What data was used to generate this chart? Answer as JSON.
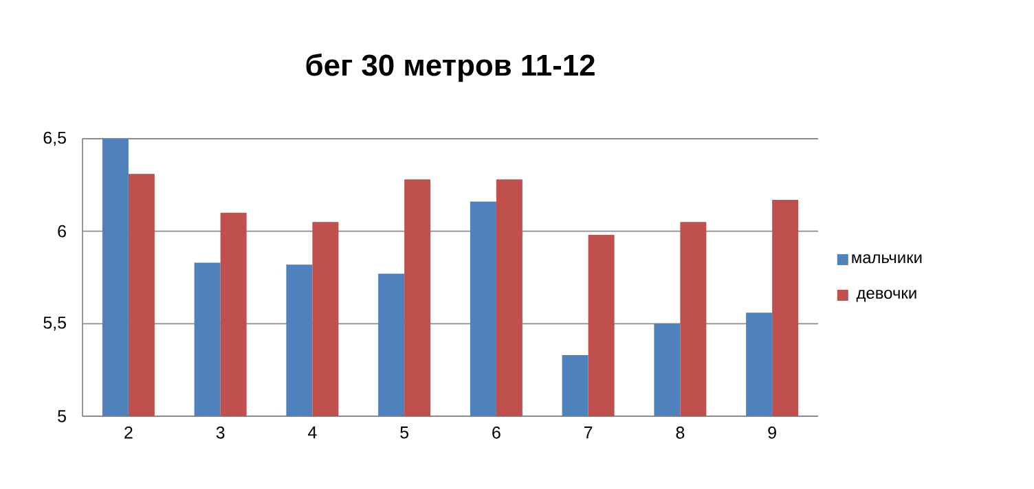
{
  "chart_data": {
    "type": "bar",
    "title": "бег 30 метров 11-12",
    "categories": [
      "2",
      "3",
      "4",
      "5",
      "6",
      "7",
      "8",
      "9"
    ],
    "series": [
      {
        "name": "мальчики",
        "color": "#4f81bd",
        "values": [
          6.5,
          5.83,
          5.82,
          5.77,
          6.16,
          5.33,
          5.5,
          5.56
        ]
      },
      {
        "name": "девочки",
        "color": "#c0504d",
        "values": [
          6.31,
          6.1,
          6.05,
          6.28,
          6.28,
          5.98,
          6.05,
          6.17
        ]
      }
    ],
    "ylim": [
      5,
      6.5
    ],
    "yticks": [
      5,
      {
        "value": 5.5,
        "label": "5,5"
      },
      6,
      {
        "value": 6.5,
        "label": "6,5"
      }
    ],
    "grid": "y",
    "legend": "right"
  }
}
